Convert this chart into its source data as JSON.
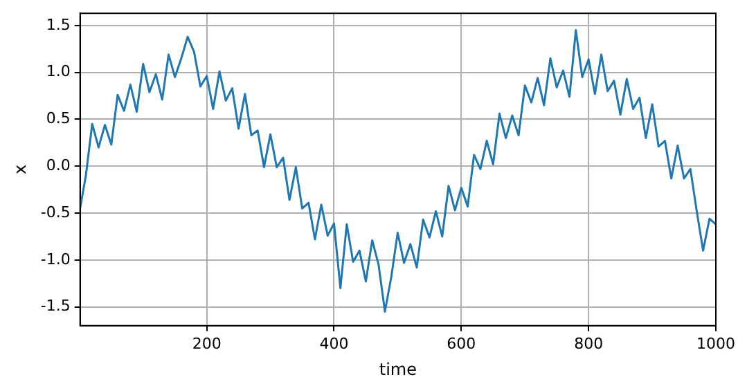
{
  "chart_data": {
    "type": "line",
    "xlabel": "time",
    "ylabel": "x",
    "x": [
      1,
      10,
      20,
      30,
      40,
      50,
      60,
      70,
      80,
      90,
      100,
      110,
      120,
      130,
      140,
      150,
      160,
      170,
      180,
      190,
      200,
      210,
      220,
      230,
      240,
      250,
      260,
      270,
      280,
      290,
      300,
      310,
      320,
      330,
      340,
      350,
      360,
      370,
      380,
      390,
      400,
      410,
      420,
      430,
      440,
      450,
      460,
      470,
      480,
      490,
      500,
      510,
      520,
      530,
      540,
      550,
      560,
      570,
      580,
      590,
      600,
      610,
      620,
      630,
      640,
      650,
      660,
      670,
      680,
      690,
      700,
      710,
      720,
      730,
      740,
      750,
      760,
      770,
      780,
      790,
      800,
      810,
      820,
      830,
      840,
      850,
      860,
      870,
      880,
      890,
      900,
      910,
      920,
      930,
      940,
      950,
      960,
      970,
      980,
      990,
      1000
    ],
    "series": [
      {
        "color": "#1f77b4",
        "values": [
          -0.45,
          -0.1,
          0.45,
          0.2,
          0.44,
          0.23,
          0.76,
          0.59,
          0.87,
          0.58,
          1.09,
          0.79,
          0.98,
          0.71,
          1.19,
          0.95,
          1.15,
          1.38,
          1.22,
          0.85,
          0.96,
          0.61,
          1.01,
          0.7,
          0.83,
          0.4,
          0.77,
          0.33,
          0.38,
          -0.01,
          0.34,
          -0.01,
          0.09,
          -0.36,
          -0.01,
          -0.45,
          -0.39,
          -0.78,
          -0.41,
          -0.74,
          -0.61,
          -1.3,
          -0.62,
          -1.02,
          -0.9,
          -1.23,
          -0.79,
          -1.05,
          -1.55,
          -1.18,
          -0.71,
          -1.03,
          -0.83,
          -1.08,
          -0.57,
          -0.76,
          -0.48,
          -0.75,
          -0.21,
          -0.47,
          -0.23,
          -0.43,
          0.12,
          -0.03,
          0.27,
          0.02,
          0.56,
          0.3,
          0.54,
          0.33,
          0.86,
          0.68,
          0.94,
          0.65,
          1.15,
          0.84,
          1.02,
          0.74,
          1.45,
          0.95,
          1.14,
          0.77,
          1.19,
          0.8,
          0.91,
          0.55,
          0.93,
          0.61,
          0.73,
          0.3,
          0.66,
          0.21,
          0.27,
          -0.13,
          0.22,
          -0.13,
          -0.03,
          -0.48,
          -0.9,
          -0.56,
          -0.62
        ]
      }
    ],
    "xlim": [
      1,
      1000
    ],
    "xticks": [
      200,
      400,
      600,
      800,
      1000
    ],
    "ylim": [
      -1.7,
      1.63
    ],
    "yticks": [
      -1.5,
      {
        "value": -1,
        "label": "-1.0"
      },
      -0.5,
      {
        "value": 0,
        "label": "0.0"
      },
      0.5,
      {
        "value": 1,
        "label": "1.0"
      },
      1.5
    ],
    "grid": true,
    "legend": false,
    "marker": "none",
    "line_style": "solid"
  }
}
